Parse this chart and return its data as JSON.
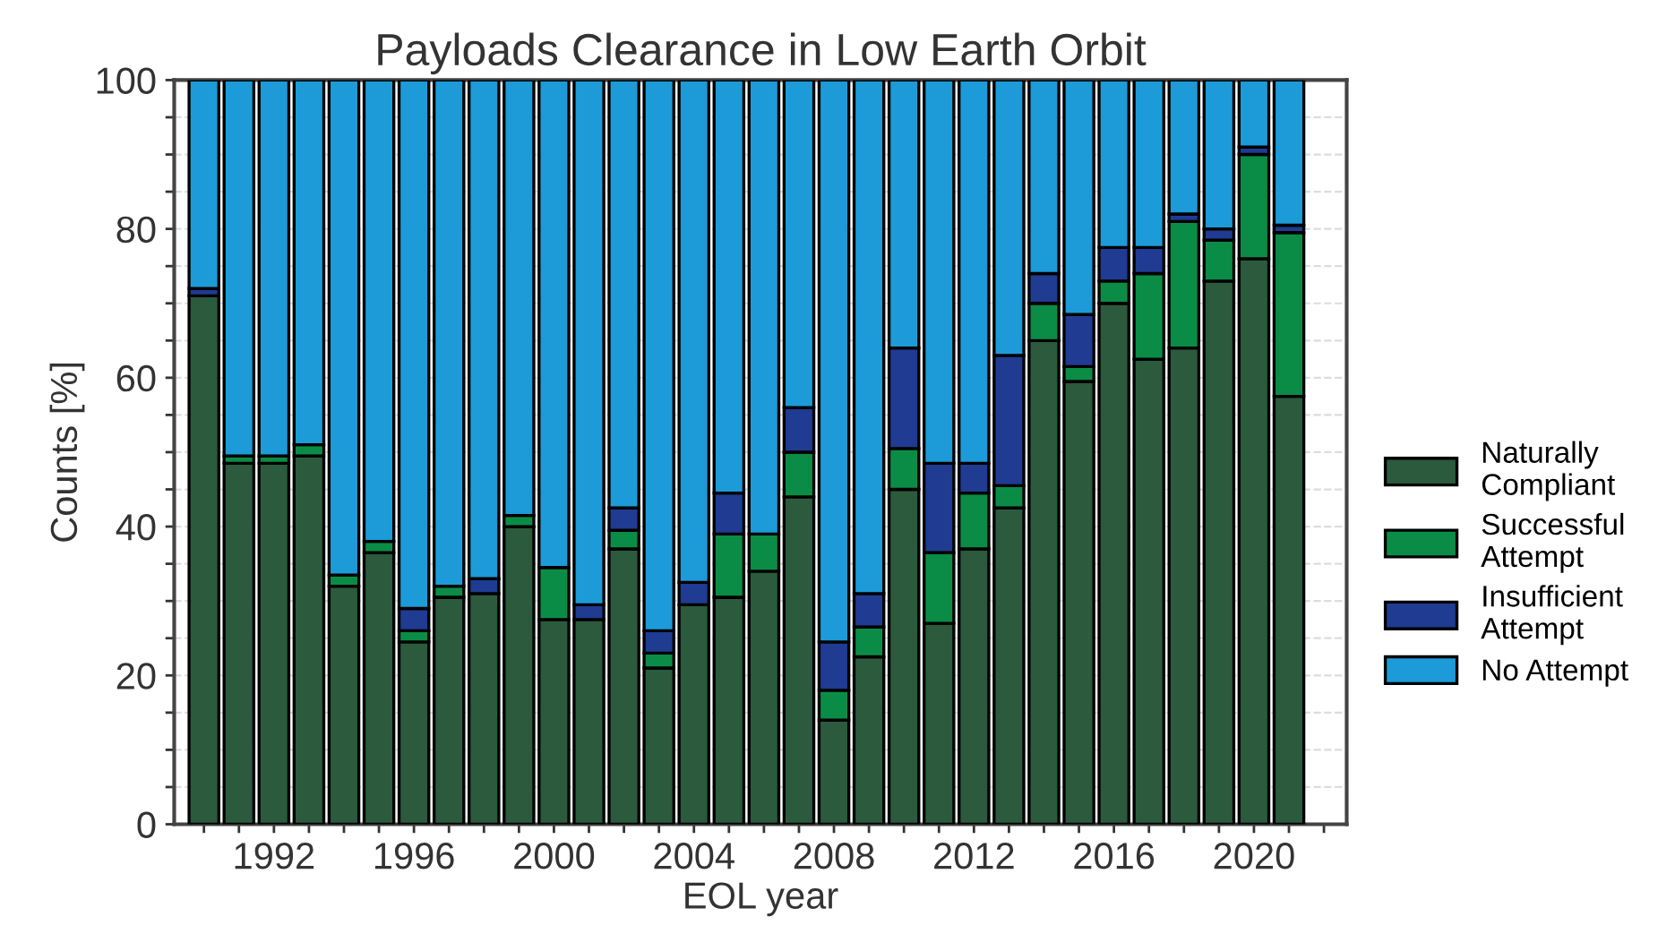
{
  "chart_data": {
    "type": "bar",
    "title": "Payloads Clearance in Low Earth Orbit",
    "xlabel": "EOL year",
    "ylabel": "Counts [%]",
    "x": [
      1990,
      1991,
      1992,
      1993,
      1994,
      1995,
      1996,
      1997,
      1998,
      1999,
      2000,
      2001,
      2002,
      2003,
      2004,
      2005,
      2006,
      2007,
      2008,
      2009,
      2010,
      2011,
      2012,
      2013,
      2014,
      2015,
      2016,
      2017,
      2018,
      2019,
      2020,
      2021
    ],
    "stacked": true,
    "series": [
      {
        "name": "Naturally Compliant",
        "color": "#2b5a3c",
        "values": [
          71,
          48.5,
          48.5,
          49.5,
          32,
          36.5,
          24.5,
          30.5,
          31,
          40,
          27.5,
          27.5,
          37,
          21,
          29.5,
          30.5,
          34,
          44,
          14,
          22.5,
          45,
          27,
          37,
          42.5,
          65,
          59.5,
          70,
          62.5,
          64,
          73,
          76,
          57.5
        ]
      },
      {
        "name": "Successful Attempt",
        "color": "#0b8c46",
        "values": [
          0,
          1,
          1,
          1.5,
          1.5,
          1.5,
          1.5,
          1.5,
          0,
          1.5,
          7,
          0,
          2.5,
          2,
          0,
          8.5,
          5,
          6,
          4,
          4,
          5.5,
          9.5,
          7.5,
          3,
          5,
          2,
          3,
          11.5,
          17,
          5.5,
          14,
          22
        ]
      },
      {
        "name": "Insufficient Attempt",
        "color": "#1f3b92",
        "values": [
          1,
          0,
          0,
          0,
          0,
          0,
          3,
          0,
          2,
          0,
          0,
          2,
          3,
          3,
          3,
          5.5,
          0,
          6,
          6.5,
          4.5,
          13.5,
          12,
          4,
          17.5,
          4,
          7,
          4.5,
          3.5,
          1,
          1.5,
          1,
          1
        ]
      },
      {
        "name": "No Attempt",
        "color": "#1c9bd8",
        "values": [
          28,
          50.5,
          50.5,
          49,
          66.5,
          62,
          71,
          68,
          67,
          58.5,
          65.5,
          70.5,
          57.5,
          74,
          67.5,
          55.5,
          61,
          44,
          75.5,
          69,
          36,
          51.5,
          51.5,
          37,
          26,
          31.5,
          22.5,
          22.5,
          18,
          20,
          9,
          19.5
        ]
      }
    ],
    "xlim": [
      1989.15,
      2022.65
    ],
    "xticks": [
      {
        "value": 1990,
        "label": null
      },
      {
        "value": 1991,
        "label": null
      },
      1992,
      {
        "value": 1993,
        "label": null
      },
      {
        "value": 1994,
        "label": null
      },
      {
        "value": 1995,
        "label": null
      },
      1996,
      {
        "value": 1997,
        "label": null
      },
      {
        "value": 1998,
        "label": null
      },
      {
        "value": 1999,
        "label": null
      },
      2000,
      {
        "value": 2001,
        "label": null
      },
      {
        "value": 2002,
        "label": null
      },
      {
        "value": 2003,
        "label": null
      },
      2004,
      {
        "value": 2005,
        "label": null
      },
      {
        "value": 2006,
        "label": null
      },
      {
        "value": 2007,
        "label": null
      },
      2008,
      {
        "value": 2009,
        "label": null
      },
      {
        "value": 2010,
        "label": null
      },
      {
        "value": 2011,
        "label": null
      },
      2012,
      {
        "value": 2013,
        "label": null
      },
      {
        "value": 2014,
        "label": null
      },
      {
        "value": 2015,
        "label": null
      },
      2016,
      {
        "value": 2017,
        "label": null
      },
      {
        "value": 2018,
        "label": null
      },
      {
        "value": 2019,
        "label": null
      },
      2020,
      {
        "value": 2021,
        "label": null
      },
      {
        "value": 2022,
        "label": null
      }
    ],
    "ylim": [
      0,
      100
    ],
    "yticks": [
      0,
      {
        "value": 5,
        "label": null
      },
      {
        "value": 10,
        "label": null
      },
      {
        "value": 15,
        "label": null
      },
      20,
      {
        "value": 25,
        "label": null
      },
      {
        "value": 30,
        "label": null
      },
      {
        "value": 35,
        "label": null
      },
      40,
      {
        "value": 45,
        "label": null
      },
      {
        "value": 50,
        "label": null
      },
      {
        "value": 55,
        "label": null
      },
      60,
      {
        "value": 65,
        "label": null
      },
      {
        "value": 70,
        "label": null
      },
      {
        "value": 75,
        "label": null
      },
      80,
      {
        "value": 85,
        "label": null
      },
      {
        "value": 90,
        "label": null
      },
      {
        "value": 95,
        "label": null
      },
      100
    ],
    "grid": "y",
    "legend": "right"
  }
}
